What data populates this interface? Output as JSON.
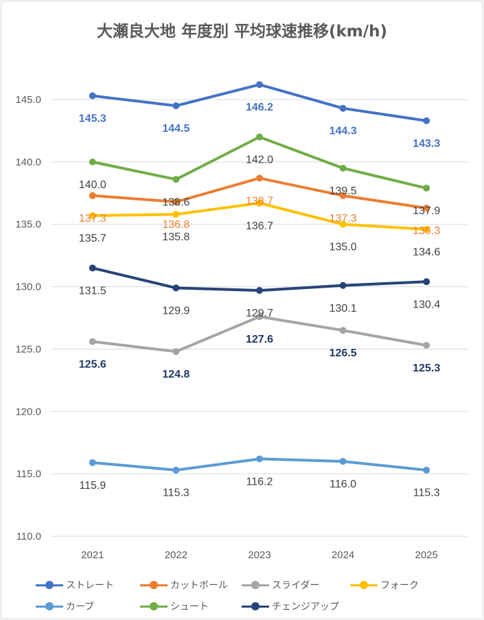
{
  "chart_data": {
    "type": "line",
    "title": "大瀬良大地 年度別 平均球速推移(km/h)",
    "categories": [
      "2021",
      "2022",
      "2023",
      "2024",
      "2025"
    ],
    "ylim": [
      110,
      145
    ],
    "yticks": [
      "110.0",
      "115.0",
      "120.0",
      "125.0",
      "130.0",
      "135.0",
      "140.0",
      "145.0"
    ],
    "grid": true,
    "legend_position": "bottom",
    "series": [
      {
        "name": "ストレート",
        "color": "#4472c4",
        "values": [
          145.3,
          144.5,
          146.2,
          144.3,
          143.3
        ],
        "labels": [
          "145.3",
          "144.5",
          "146.2",
          "144.3",
          "143.3"
        ],
        "label_color": "#4472c4"
      },
      {
        "name": "カットボール",
        "color": "#ed7d31",
        "values": [
          137.3,
          136.8,
          138.7,
          137.3,
          136.3
        ],
        "labels": [
          "137.3",
          "136.8",
          "138.7",
          "137.3",
          "136.3"
        ],
        "label_color": "#ed7d31"
      },
      {
        "name": "スライダー",
        "color": "#a5a5a5",
        "values": [
          125.6,
          124.8,
          127.6,
          126.5,
          125.3
        ],
        "labels": [
          "125.6",
          "124.8",
          "127.6",
          "126.5",
          "125.3"
        ],
        "label_color": "#203864"
      },
      {
        "name": "フォーク",
        "color": "#ffc000",
        "values": [
          135.7,
          135.8,
          136.7,
          135.0,
          134.6
        ],
        "labels": [
          "135.7",
          "135.8",
          "136.7",
          "135.0",
          "134.6"
        ],
        "label_color": "#404040"
      },
      {
        "name": "カーブ",
        "color": "#5b9bd5",
        "values": [
          115.9,
          115.3,
          116.2,
          116.0,
          115.3
        ],
        "labels": [
          "115.9",
          "115.3",
          "116.2",
          "116.0",
          "115.3"
        ],
        "label_color": "#404040"
      },
      {
        "name": "シュート",
        "color": "#70ad47",
        "values": [
          140.0,
          138.6,
          142.0,
          139.5,
          137.9
        ],
        "labels": [
          "140.0",
          "138.6",
          "142.0",
          "139.5",
          "137.9"
        ],
        "label_color": "#404040"
      },
      {
        "name": "チェンジアップ",
        "color": "#264478",
        "values": [
          131.5,
          129.9,
          129.7,
          130.1,
          130.4
        ],
        "labels": [
          "131.5",
          "129.9",
          "129.7",
          "130.1",
          "130.4"
        ],
        "label_color": "#404040"
      }
    ]
  }
}
